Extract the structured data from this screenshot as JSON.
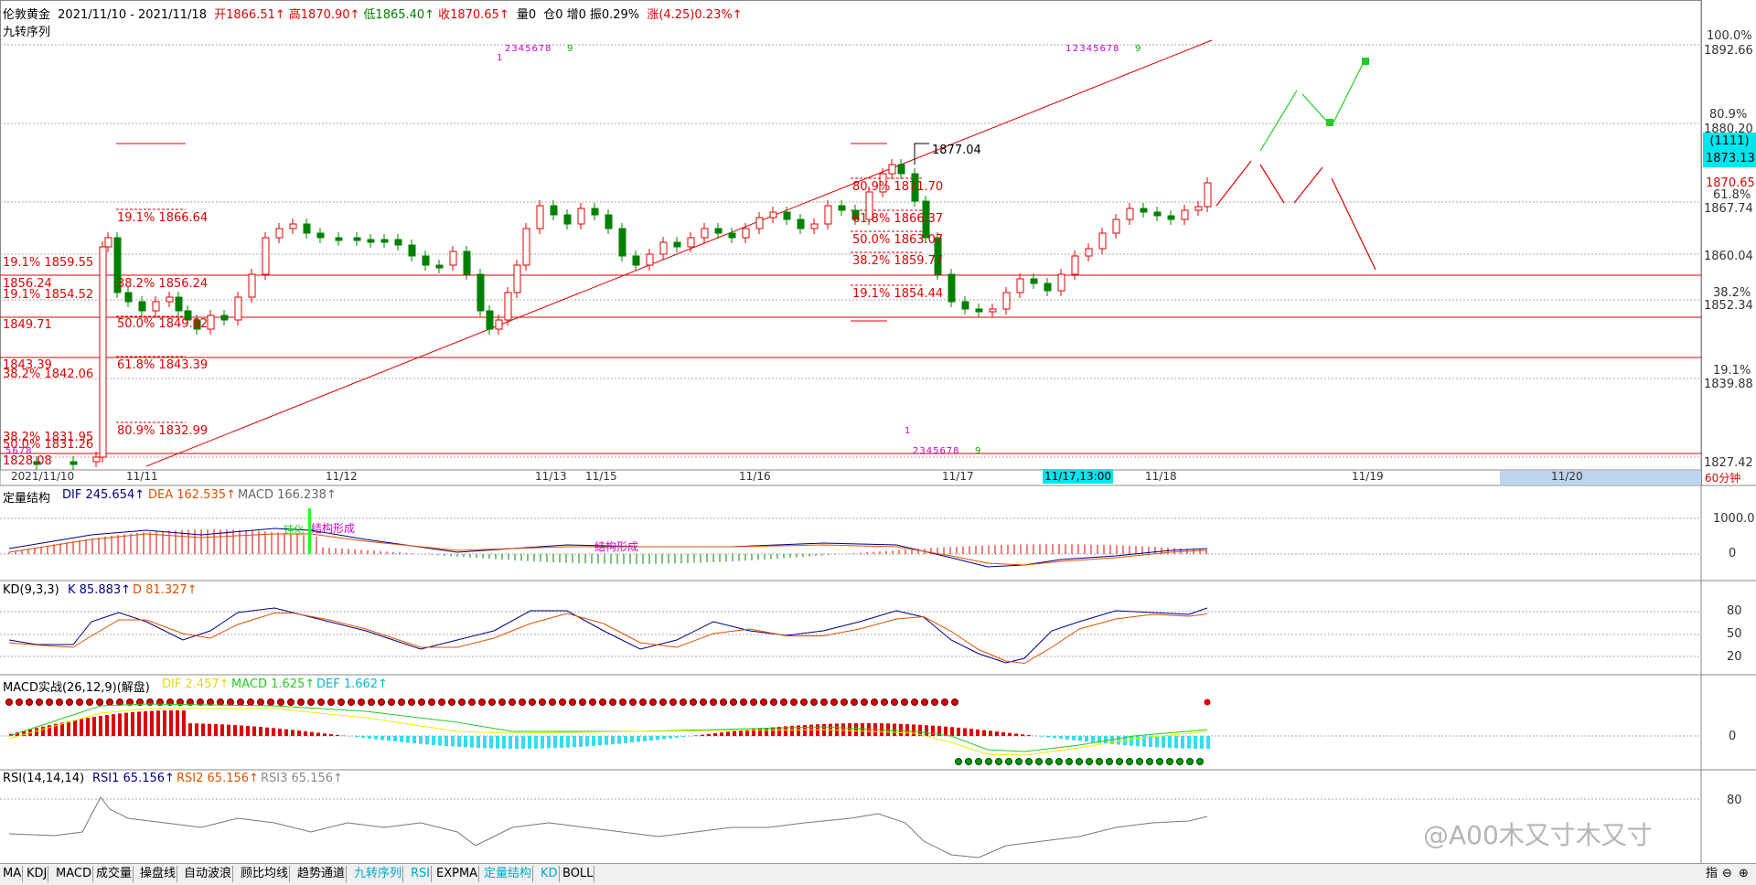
{
  "header": {
    "symbol": "伦敦黄金",
    "date_range": "2021/11/10 - 2021/11/18",
    "open": "开1866.51↑",
    "high": "高1870.90↑",
    "low": "低1865.40↑",
    "close": "收1870.65↑",
    "volume": "量0",
    "position": "仓0",
    "increase": "增0",
    "amplitude": "振0.29%",
    "change": "涨(4.25)0.23%↑",
    "indicator": "九转序列"
  },
  "price_axis": {
    "labels": [
      "100.0%",
      "1892.66",
      "80.9%",
      "1880.20",
      "1870.65",
      "61.8%",
      "1867.74",
      "1860.04",
      "38.2%",
      "1852.34",
      "19.1%",
      "1839.88",
      "1827.42"
    ],
    "current_box": [
      "(1111)",
      "1873.13"
    ]
  },
  "annotations": {
    "high_mark": "1877.04",
    "left_levels": [
      "19.1% 1859.55",
      "1856.24",
      "19.1% 1854.52",
      "1849.71",
      "1843.39",
      "38.2% 1842.06",
      "38.2% 1831.95",
      "50.0% 1831.26",
      "1828.08"
    ],
    "fib_left": [
      "19.1% 1866.64",
      "38.2% 1856.24",
      "50.0% 1849.82",
      "61.8% 1843.39",
      "80.9% 1832.99"
    ],
    "fib_right": [
      "80.9% 1871.70",
      "61.8% 1866.37",
      "50.0% 1863.07",
      "38.2% 1859.77",
      "19.1% 1854.44"
    ],
    "seq_top_left": [
      "1",
      "2345678",
      "9"
    ],
    "seq_top_right": [
      "1",
      "2345678",
      "9"
    ],
    "seq_bottom": [
      "1",
      "2345678",
      "9"
    ],
    "seq_far_left": "5678"
  },
  "time_axis": {
    "labels": [
      "2021/11/10",
      "11/11",
      "11/12",
      "11/13",
      "11/15",
      "11/16",
      "11/17",
      "11/18",
      "11/19",
      "11/20"
    ],
    "cursor": "11/17,13:00",
    "period": "60分钟"
  },
  "macd_panel": {
    "title": "定量结构",
    "dif": "DIF 245.654↑",
    "dea": "DEA 162.535↑",
    "macd": "MACD 166.238↑",
    "axis": [
      "1000.0",
      "0"
    ],
    "notes": [
      "钝化",
      "结构形成",
      "结构形成"
    ]
  },
  "kd_panel": {
    "title": "KD(9,3,3)",
    "k": "K 85.883↑",
    "d": "D 81.327↑",
    "axis": [
      "80",
      "50",
      "20"
    ]
  },
  "macd2_panel": {
    "title": "MACD实战(26,12,9)(解盘)",
    "dif": "DIF 2.457↑",
    "macd": "MACD 1.625↑",
    "def": "DEF 1.662↑",
    "axis": [
      "0"
    ]
  },
  "rsi_panel": {
    "title": "RSI(14,14,14)",
    "rsi1": "RSI1 65.156↑",
    "rsi2": "RSI2 65.156↑",
    "rsi3": "RSI3 65.156↑",
    "axis": [
      "80"
    ]
  },
  "watermark": "@A00木又寸木又寸",
  "tabs": [
    "MA",
    "KDJ",
    "MACD",
    "成交量",
    "操盘线",
    "自动波浪",
    "顾比均线",
    "趋势通道",
    "九转序列",
    "RSI",
    "EXPMA",
    "定量结构",
    "KD",
    "BOLL"
  ],
  "tabs_right": [
    "指",
    "⊖",
    "⊕"
  ],
  "colors": {
    "up": "#ff0000",
    "down": "#008000",
    "accent_cyan": "#00e5ee",
    "line_red": "#e00000"
  }
}
